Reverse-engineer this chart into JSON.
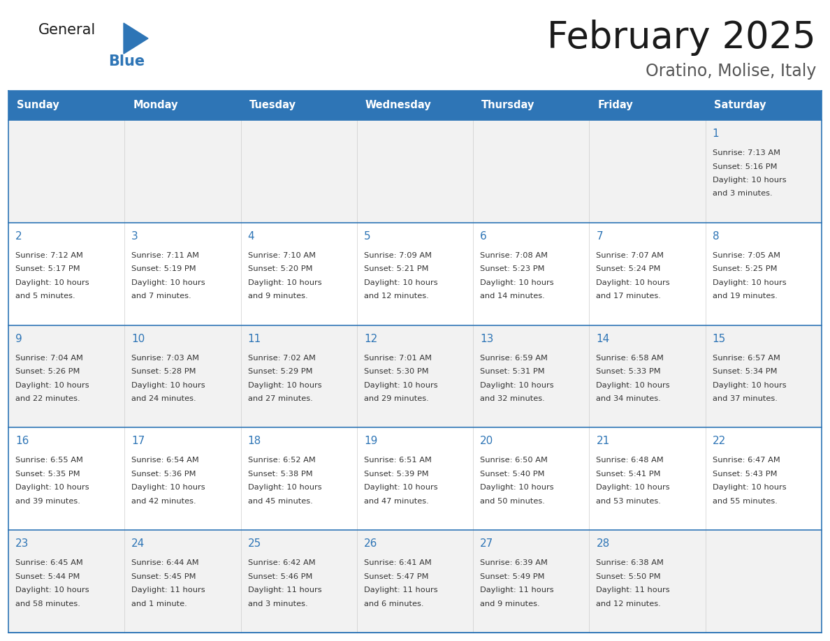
{
  "title": "February 2025",
  "subtitle": "Oratino, Molise, Italy",
  "header_bg": "#2E75B6",
  "header_text_color": "#FFFFFF",
  "border_color": "#2E75B6",
  "row_border_color": "#2E75B6",
  "days_of_week": [
    "Sunday",
    "Monday",
    "Tuesday",
    "Wednesday",
    "Thursday",
    "Friday",
    "Saturday"
  ],
  "calendar_data": [
    [
      null,
      null,
      null,
      null,
      null,
      null,
      {
        "day": "1",
        "sunrise": "7:13 AM",
        "sunset": "5:16 PM",
        "daylight": "10 hours\nand 3 minutes."
      }
    ],
    [
      {
        "day": "2",
        "sunrise": "7:12 AM",
        "sunset": "5:17 PM",
        "daylight": "10 hours\nand 5 minutes."
      },
      {
        "day": "3",
        "sunrise": "7:11 AM",
        "sunset": "5:19 PM",
        "daylight": "10 hours\nand 7 minutes."
      },
      {
        "day": "4",
        "sunrise": "7:10 AM",
        "sunset": "5:20 PM",
        "daylight": "10 hours\nand 9 minutes."
      },
      {
        "day": "5",
        "sunrise": "7:09 AM",
        "sunset": "5:21 PM",
        "daylight": "10 hours\nand 12 minutes."
      },
      {
        "day": "6",
        "sunrise": "7:08 AM",
        "sunset": "5:23 PM",
        "daylight": "10 hours\nand 14 minutes."
      },
      {
        "day": "7",
        "sunrise": "7:07 AM",
        "sunset": "5:24 PM",
        "daylight": "10 hours\nand 17 minutes."
      },
      {
        "day": "8",
        "sunrise": "7:05 AM",
        "sunset": "5:25 PM",
        "daylight": "10 hours\nand 19 minutes."
      }
    ],
    [
      {
        "day": "9",
        "sunrise": "7:04 AM",
        "sunset": "5:26 PM",
        "daylight": "10 hours\nand 22 minutes."
      },
      {
        "day": "10",
        "sunrise": "7:03 AM",
        "sunset": "5:28 PM",
        "daylight": "10 hours\nand 24 minutes."
      },
      {
        "day": "11",
        "sunrise": "7:02 AM",
        "sunset": "5:29 PM",
        "daylight": "10 hours\nand 27 minutes."
      },
      {
        "day": "12",
        "sunrise": "7:01 AM",
        "sunset": "5:30 PM",
        "daylight": "10 hours\nand 29 minutes."
      },
      {
        "day": "13",
        "sunrise": "6:59 AM",
        "sunset": "5:31 PM",
        "daylight": "10 hours\nand 32 minutes."
      },
      {
        "day": "14",
        "sunrise": "6:58 AM",
        "sunset": "5:33 PM",
        "daylight": "10 hours\nand 34 minutes."
      },
      {
        "day": "15",
        "sunrise": "6:57 AM",
        "sunset": "5:34 PM",
        "daylight": "10 hours\nand 37 minutes."
      }
    ],
    [
      {
        "day": "16",
        "sunrise": "6:55 AM",
        "sunset": "5:35 PM",
        "daylight": "10 hours\nand 39 minutes."
      },
      {
        "day": "17",
        "sunrise": "6:54 AM",
        "sunset": "5:36 PM",
        "daylight": "10 hours\nand 42 minutes."
      },
      {
        "day": "18",
        "sunrise": "6:52 AM",
        "sunset": "5:38 PM",
        "daylight": "10 hours\nand 45 minutes."
      },
      {
        "day": "19",
        "sunrise": "6:51 AM",
        "sunset": "5:39 PM",
        "daylight": "10 hours\nand 47 minutes."
      },
      {
        "day": "20",
        "sunrise": "6:50 AM",
        "sunset": "5:40 PM",
        "daylight": "10 hours\nand 50 minutes."
      },
      {
        "day": "21",
        "sunrise": "6:48 AM",
        "sunset": "5:41 PM",
        "daylight": "10 hours\nand 53 minutes."
      },
      {
        "day": "22",
        "sunrise": "6:47 AM",
        "sunset": "5:43 PM",
        "daylight": "10 hours\nand 55 minutes."
      }
    ],
    [
      {
        "day": "23",
        "sunrise": "6:45 AM",
        "sunset": "5:44 PM",
        "daylight": "10 hours\nand 58 minutes."
      },
      {
        "day": "24",
        "sunrise": "6:44 AM",
        "sunset": "5:45 PM",
        "daylight": "11 hours\nand 1 minute."
      },
      {
        "day": "25",
        "sunrise": "6:42 AM",
        "sunset": "5:46 PM",
        "daylight": "11 hours\nand 3 minutes."
      },
      {
        "day": "26",
        "sunrise": "6:41 AM",
        "sunset": "5:47 PM",
        "daylight": "11 hours\nand 6 minutes."
      },
      {
        "day": "27",
        "sunrise": "6:39 AM",
        "sunset": "5:49 PM",
        "daylight": "11 hours\nand 9 minutes."
      },
      {
        "day": "28",
        "sunrise": "6:38 AM",
        "sunset": "5:50 PM",
        "daylight": "11 hours\nand 12 minutes."
      },
      null
    ]
  ],
  "title_color": "#1A1A1A",
  "subtitle_color": "#555555",
  "day_number_color": "#2E75B6",
  "cell_text_color": "#333333",
  "logo_general_color": "#1A1A1A",
  "logo_blue_color": "#2E75B6",
  "logo_triangle_color": "#2E75B6"
}
